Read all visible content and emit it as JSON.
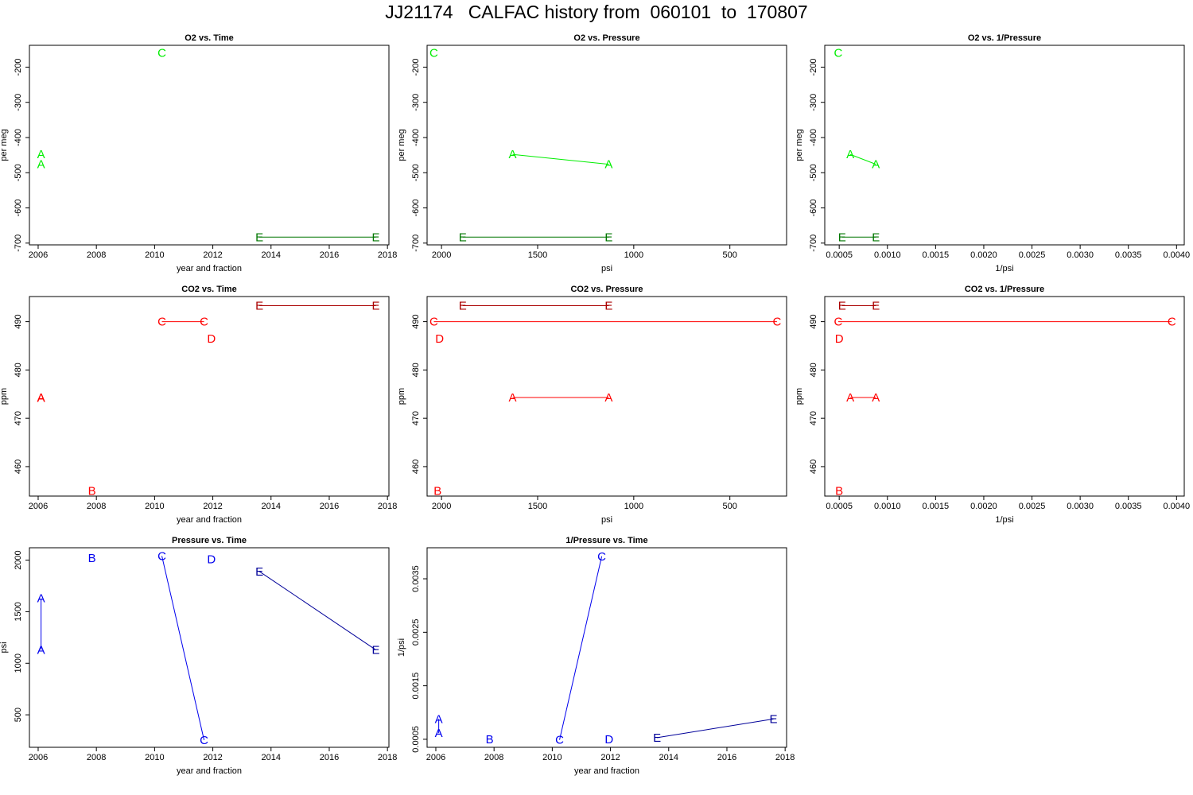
{
  "page": {
    "title": "JJ21174   CALFAC history from  060101  to  170807"
  },
  "colors": {
    "o2": "#00ee00",
    "o2_dark": "#007700",
    "co2": "#ff0000",
    "co2_dark": "#aa0000",
    "pressure": "#0000ee",
    "pressure_dark": "#000099"
  },
  "chart_data": [
    {
      "type": "scatter",
      "title": "O2 vs. Time",
      "xlabel": "year and fraction",
      "ylabel": "per meg",
      "xlim": [
        2005.7,
        2018.05
      ],
      "ylim": [
        -705,
        -138
      ],
      "xticks": [
        2006,
        2008,
        2010,
        2012,
        2014,
        2016,
        2018
      ],
      "xtick_labels": [
        "2006",
        "2008",
        "2010",
        "2012",
        "2014",
        "2016",
        "2018"
      ],
      "yticks": [
        -200,
        -300,
        -400,
        -500,
        -600,
        -700
      ],
      "ytick_labels": [
        "-200",
        "-300",
        "-400",
        "-500",
        "-600",
        "-700"
      ],
      "points": [
        {
          "label": "A",
          "x": 2006.1,
          "y": -448,
          "color": "#00ee00"
        },
        {
          "label": "A",
          "x": 2006.1,
          "y": -476,
          "color": "#00ee00"
        },
        {
          "label": "C",
          "x": 2010.25,
          "y": -160,
          "color": "#00ee00"
        },
        {
          "label": "E",
          "x": 2013.6,
          "y": -683,
          "color": "#007700"
        },
        {
          "label": "E",
          "x": 2017.6,
          "y": -683,
          "color": "#007700"
        }
      ],
      "lines": [
        {
          "from": 3,
          "to": 4,
          "color": "#007700"
        }
      ]
    },
    {
      "type": "scatter",
      "title": "O2 vs. Pressure",
      "xlabel": "psi",
      "ylabel": "per meg",
      "xlim": [
        2075,
        205
      ],
      "ylim": [
        -705,
        -138
      ],
      "xticks": [
        2000,
        1500,
        1000,
        500
      ],
      "xtick_labels": [
        "2000",
        "1500",
        "1000",
        "500"
      ],
      "yticks": [
        -200,
        -300,
        -400,
        -500,
        -600,
        -700
      ],
      "ytick_labels": [
        "-200",
        "-300",
        "-400",
        "-500",
        "-600",
        "-700"
      ],
      "points": [
        {
          "label": "C",
          "x": 2040,
          "y": -160,
          "color": "#00ee00"
        },
        {
          "label": "A",
          "x": 1630,
          "y": -448,
          "color": "#00ee00"
        },
        {
          "label": "A",
          "x": 1130,
          "y": -476,
          "color": "#00ee00"
        },
        {
          "label": "E",
          "x": 1890,
          "y": -683,
          "color": "#007700"
        },
        {
          "label": "E",
          "x": 1130,
          "y": -683,
          "color": "#007700"
        }
      ],
      "lines": [
        {
          "from": 1,
          "to": 2,
          "color": "#00ee00"
        },
        {
          "from": 3,
          "to": 4,
          "color": "#007700"
        }
      ]
    },
    {
      "type": "scatter",
      "title": "O2 vs. 1/Pressure",
      "xlabel": "1/psi",
      "ylabel": "per meg",
      "xlim": [
        0.00035,
        0.00408
      ],
      "ylim": [
        -705,
        -138
      ],
      "xticks": [
        0.0005,
        0.001,
        0.0015,
        0.002,
        0.0025,
        0.003,
        0.0035,
        0.004
      ],
      "xtick_labels": [
        "0.0005",
        "0.0010",
        "0.0015",
        "0.0020",
        "0.0025",
        "0.0030",
        "0.0035",
        "0.0040"
      ],
      "yticks": [
        -200,
        -300,
        -400,
        -500,
        -600,
        -700
      ],
      "ytick_labels": [
        "-200",
        "-300",
        "-400",
        "-500",
        "-600",
        "-700"
      ],
      "points": [
        {
          "label": "C",
          "x": 0.00049,
          "y": -160,
          "color": "#00ee00"
        },
        {
          "label": "A",
          "x": 0.000615,
          "y": -448,
          "color": "#00ee00"
        },
        {
          "label": "A",
          "x": 0.00088,
          "y": -476,
          "color": "#00ee00"
        },
        {
          "label": "E",
          "x": 0.00053,
          "y": -683,
          "color": "#007700"
        },
        {
          "label": "E",
          "x": 0.00088,
          "y": -683,
          "color": "#007700"
        }
      ],
      "lines": [
        {
          "from": 1,
          "to": 2,
          "color": "#00ee00"
        },
        {
          "from": 3,
          "to": 4,
          "color": "#007700"
        }
      ]
    },
    {
      "type": "scatter",
      "title": "CO2 vs. Time",
      "xlabel": "year and fraction",
      "ylabel": "ppm",
      "xlim": [
        2005.7,
        2018.05
      ],
      "ylim": [
        453.9,
        495.2
      ],
      "xticks": [
        2006,
        2008,
        2010,
        2012,
        2014,
        2016,
        2018
      ],
      "xtick_labels": [
        "2006",
        "2008",
        "2010",
        "2012",
        "2014",
        "2016",
        "2018"
      ],
      "yticks": [
        460,
        470,
        480,
        490
      ],
      "ytick_labels": [
        "460",
        "470",
        "480",
        "490"
      ],
      "points": [
        {
          "label": "A",
          "x": 2006.1,
          "y": 474.3,
          "color": "#ff0000"
        },
        {
          "label": "A",
          "x": 2006.1,
          "y": 474.2,
          "color": "#ff0000"
        },
        {
          "label": "B",
          "x": 2007.85,
          "y": 455.0,
          "color": "#ff0000"
        },
        {
          "label": "C",
          "x": 2010.25,
          "y": 490.0,
          "color": "#ff0000"
        },
        {
          "label": "C",
          "x": 2011.7,
          "y": 490.0,
          "color": "#ff0000"
        },
        {
          "label": "D",
          "x": 2011.95,
          "y": 486.5,
          "color": "#ff0000"
        },
        {
          "label": "E",
          "x": 2013.6,
          "y": 493.3,
          "color": "#aa0000"
        },
        {
          "label": "E",
          "x": 2017.6,
          "y": 493.3,
          "color": "#aa0000"
        }
      ],
      "lines": [
        {
          "from": 3,
          "to": 4,
          "color": "#ff0000"
        },
        {
          "from": 6,
          "to": 7,
          "color": "#aa0000"
        }
      ]
    },
    {
      "type": "scatter",
      "title": "CO2 vs. Pressure",
      "xlabel": "psi",
      "ylabel": "ppm",
      "xlim": [
        2075,
        205
      ],
      "ylim": [
        453.9,
        495.2
      ],
      "xticks": [
        2000,
        1500,
        1000,
        500
      ],
      "xtick_labels": [
        "2000",
        "1500",
        "1000",
        "500"
      ],
      "yticks": [
        460,
        470,
        480,
        490
      ],
      "ytick_labels": [
        "460",
        "470",
        "480",
        "490"
      ],
      "points": [
        {
          "label": "E",
          "x": 1890,
          "y": 493.3,
          "color": "#aa0000"
        },
        {
          "label": "E",
          "x": 1130,
          "y": 493.3,
          "color": "#aa0000"
        },
        {
          "label": "C",
          "x": 2040,
          "y": 490.0,
          "color": "#ff0000"
        },
        {
          "label": "C",
          "x": 255,
          "y": 490.0,
          "color": "#ff0000"
        },
        {
          "label": "D",
          "x": 2010,
          "y": 486.5,
          "color": "#ff0000"
        },
        {
          "label": "A",
          "x": 1630,
          "y": 474.3,
          "color": "#ff0000"
        },
        {
          "label": "A",
          "x": 1130,
          "y": 474.3,
          "color": "#ff0000"
        },
        {
          "label": "B",
          "x": 2020,
          "y": 455.0,
          "color": "#ff0000"
        }
      ],
      "lines": [
        {
          "from": 0,
          "to": 1,
          "color": "#aa0000"
        },
        {
          "from": 2,
          "to": 3,
          "color": "#ff0000"
        },
        {
          "from": 5,
          "to": 6,
          "color": "#ff0000"
        }
      ]
    },
    {
      "type": "scatter",
      "title": "CO2 vs. 1/Pressure",
      "xlabel": "1/psi",
      "ylabel": "ppm",
      "xlim": [
        0.00035,
        0.00408
      ],
      "ylim": [
        453.9,
        495.2
      ],
      "xticks": [
        0.0005,
        0.001,
        0.0015,
        0.002,
        0.0025,
        0.003,
        0.0035,
        0.004
      ],
      "xtick_labels": [
        "0.0005",
        "0.0010",
        "0.0015",
        "0.0020",
        "0.0025",
        "0.0030",
        "0.0035",
        "0.0040"
      ],
      "yticks": [
        460,
        470,
        480,
        490
      ],
      "ytick_labels": [
        "460",
        "470",
        "480",
        "490"
      ],
      "points": [
        {
          "label": "E",
          "x": 0.00053,
          "y": 493.3,
          "color": "#aa0000"
        },
        {
          "label": "E",
          "x": 0.00088,
          "y": 493.3,
          "color": "#aa0000"
        },
        {
          "label": "C",
          "x": 0.00049,
          "y": 490.0,
          "color": "#ff0000"
        },
        {
          "label": "C",
          "x": 0.00395,
          "y": 490.0,
          "color": "#ff0000"
        },
        {
          "label": "D",
          "x": 0.0005,
          "y": 486.5,
          "color": "#ff0000"
        },
        {
          "label": "A",
          "x": 0.000615,
          "y": 474.3,
          "color": "#ff0000"
        },
        {
          "label": "A",
          "x": 0.00088,
          "y": 474.3,
          "color": "#ff0000"
        },
        {
          "label": "B",
          "x": 0.0005,
          "y": 455.0,
          "color": "#ff0000"
        }
      ],
      "lines": [
        {
          "from": 0,
          "to": 1,
          "color": "#aa0000"
        },
        {
          "from": 2,
          "to": 3,
          "color": "#ff0000"
        },
        {
          "from": 5,
          "to": 6,
          "color": "#ff0000"
        }
      ]
    },
    {
      "type": "scatter",
      "title": "Pressure vs. Time",
      "xlabel": "year and fraction",
      "ylabel": "psi",
      "xlim": [
        2005.7,
        2018.05
      ],
      "ylim": [
        185,
        2120
      ],
      "xticks": [
        2006,
        2008,
        2010,
        2012,
        2014,
        2016,
        2018
      ],
      "xtick_labels": [
        "2006",
        "2008",
        "2010",
        "2012",
        "2014",
        "2016",
        "2018"
      ],
      "yticks": [
        500,
        1000,
        1500,
        2000
      ],
      "ytick_labels": [
        "500",
        "1000",
        "1500",
        "2000"
      ],
      "points": [
        {
          "label": "A",
          "x": 2006.1,
          "y": 1630,
          "color": "#0000ee"
        },
        {
          "label": "A",
          "x": 2006.1,
          "y": 1130,
          "color": "#0000ee"
        },
        {
          "label": "B",
          "x": 2007.85,
          "y": 2020,
          "color": "#0000ee"
        },
        {
          "label": "C",
          "x": 2010.25,
          "y": 2040,
          "color": "#0000ee"
        },
        {
          "label": "C",
          "x": 2011.7,
          "y": 255,
          "color": "#0000ee"
        },
        {
          "label": "D",
          "x": 2011.95,
          "y": 2010,
          "color": "#0000ee"
        },
        {
          "label": "E",
          "x": 2013.6,
          "y": 1890,
          "color": "#000099"
        },
        {
          "label": "E",
          "x": 2017.6,
          "y": 1130,
          "color": "#000099"
        }
      ],
      "lines": [
        {
          "from": 0,
          "to": 1,
          "color": "#0000ee"
        },
        {
          "from": 3,
          "to": 4,
          "color": "#0000ee"
        },
        {
          "from": 6,
          "to": 7,
          "color": "#000099"
        }
      ]
    },
    {
      "type": "scatter",
      "title": "1/Pressure vs. Time",
      "xlabel": "year and fraction",
      "ylabel": "1/psi",
      "xlim": [
        2005.7,
        2018.05
      ],
      "ylim": [
        0.00035,
        0.00408
      ],
      "xticks": [
        2006,
        2008,
        2010,
        2012,
        2014,
        2016,
        2018
      ],
      "xtick_labels": [
        "2006",
        "2008",
        "2010",
        "2012",
        "2014",
        "2016",
        "2018"
      ],
      "yticks": [
        0.0005,
        0.0015,
        0.0025,
        0.0035
      ],
      "ytick_labels": [
        "0.0005",
        "0.0015",
        "0.0025",
        "0.0035"
      ],
      "points": [
        {
          "label": "A",
          "x": 2006.1,
          "y": 0.00088,
          "color": "#0000ee"
        },
        {
          "label": "A",
          "x": 2006.1,
          "y": 0.000615,
          "color": "#0000ee"
        },
        {
          "label": "B",
          "x": 2007.85,
          "y": 0.0005,
          "color": "#0000ee"
        },
        {
          "label": "C",
          "x": 2010.25,
          "y": 0.00049,
          "color": "#0000ee"
        },
        {
          "label": "C",
          "x": 2011.7,
          "y": 0.00392,
          "color": "#0000ee"
        },
        {
          "label": "D",
          "x": 2011.95,
          "y": 0.0005,
          "color": "#0000ee"
        },
        {
          "label": "E",
          "x": 2013.6,
          "y": 0.00053,
          "color": "#000099"
        },
        {
          "label": "E",
          "x": 2017.6,
          "y": 0.00088,
          "color": "#000099"
        }
      ],
      "lines": [
        {
          "from": 0,
          "to": 1,
          "color": "#0000ee"
        },
        {
          "from": 3,
          "to": 4,
          "color": "#0000ee"
        },
        {
          "from": 6,
          "to": 7,
          "color": "#000099"
        }
      ]
    }
  ]
}
